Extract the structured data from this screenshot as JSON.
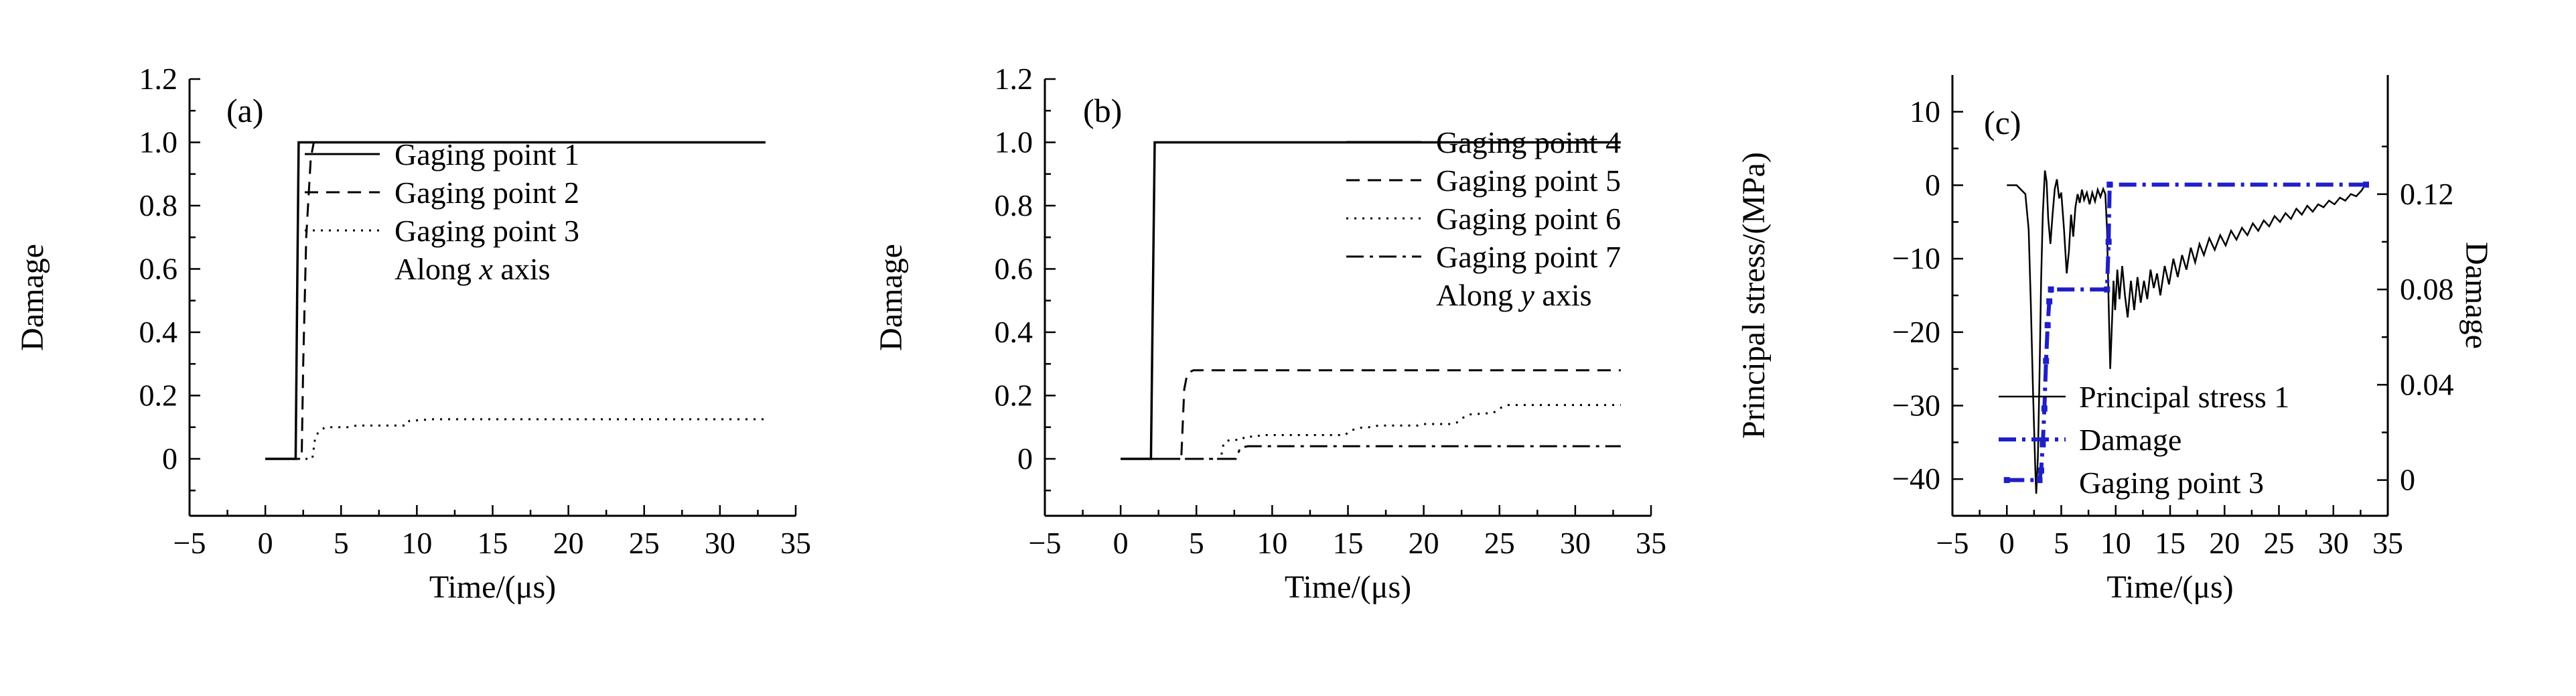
{
  "colors": {
    "black": "#000000",
    "blue": "#1f1fc8",
    "background": "#ffffff"
  },
  "chart_data": [
    {
      "type": "line",
      "panel_label": "(a)",
      "xlabel": "Time/(μs)",
      "ylabel": "Damage",
      "xlim": [
        -5,
        35
      ],
      "ylim": [
        -0.18,
        1.2
      ],
      "xtick_values": [
        -5,
        0,
        5,
        10,
        15,
        20,
        25,
        30,
        35
      ],
      "xtick_labels": [
        "−5",
        "0",
        "5",
        "10",
        "15",
        "20",
        "25",
        "30",
        "35"
      ],
      "ytick_values": [
        0,
        0.2,
        0.4,
        0.6,
        0.8,
        1.0,
        1.2
      ],
      "ytick_labels": [
        "0",
        "0.2",
        "0.4",
        "0.6",
        "0.8",
        "1.0",
        "1.2"
      ],
      "series": [
        {
          "name": "Gaging point 3",
          "style": "dotted",
          "color": "#000000",
          "width": 3,
          "points": [
            [
              0,
              0
            ],
            [
              3.1,
              0
            ],
            [
              3.3,
              0.07
            ],
            [
              3.6,
              0.09
            ],
            [
              4.0,
              0.1
            ],
            [
              5.5,
              0.1
            ],
            [
              6.0,
              0.105
            ],
            [
              9.3,
              0.105
            ],
            [
              9.5,
              0.12
            ],
            [
              11,
              0.125
            ],
            [
              33,
              0.125
            ]
          ]
        },
        {
          "name": "Gaging point 2",
          "style": "dashed",
          "color": "#000000",
          "width": 3,
          "points": [
            [
              0,
              0
            ],
            [
              2.4,
              0
            ],
            [
              2.5,
              0.3
            ],
            [
              2.7,
              0.7
            ],
            [
              3.0,
              0.95
            ],
            [
              3.2,
              1.0
            ],
            [
              33,
              1.0
            ]
          ]
        },
        {
          "name": "Gaging point 1",
          "style": "solid",
          "color": "#000000",
          "width": 3.5,
          "points": [
            [
              0,
              0
            ],
            [
              2.0,
              0
            ],
            [
              2.1,
              0.5
            ],
            [
              2.2,
              1.0
            ],
            [
              33,
              1.0
            ]
          ]
        }
      ],
      "legend": {
        "entries": [
          {
            "label": "Gaging point 1",
            "style": "solid",
            "color": "#000000",
            "width": 3
          },
          {
            "label": "Gaging point 2",
            "style": "dashed",
            "color": "#000000",
            "width": 3
          },
          {
            "label": "Gaging point 3",
            "style": "dotted",
            "color": "#000000",
            "width": 3
          },
          {
            "label": "Along x axis",
            "label_parts": [
              {
                "t": "Along "
              },
              {
                "t": "x",
                "italic": true
              },
              {
                "t": " axis"
              }
            ]
          }
        ]
      }
    },
    {
      "type": "line",
      "panel_label": "(b)",
      "xlabel": "Time/(μs)",
      "ylabel": "Damage",
      "xlim": [
        -5,
        35
      ],
      "ylim": [
        -0.18,
        1.2
      ],
      "xtick_values": [
        -5,
        0,
        5,
        10,
        15,
        20,
        25,
        30,
        35
      ],
      "xtick_labels": [
        "−5",
        "0",
        "5",
        "10",
        "15",
        "20",
        "25",
        "30",
        "35"
      ],
      "ytick_values": [
        0,
        0.2,
        0.4,
        0.6,
        0.8,
        1.0,
        1.2
      ],
      "ytick_labels": [
        "0",
        "0.2",
        "0.4",
        "0.6",
        "0.8",
        "1.0",
        "1.2"
      ],
      "series": [
        {
          "name": "Gaging point 7",
          "style": "dashdot",
          "color": "#000000",
          "width": 3,
          "points": [
            [
              0,
              0
            ],
            [
              7.6,
              0
            ],
            [
              7.9,
              0.035
            ],
            [
              8.4,
              0.04
            ],
            [
              33,
              0.04
            ]
          ]
        },
        {
          "name": "Gaging point 6",
          "style": "dotted",
          "color": "#000000",
          "width": 3,
          "points": [
            [
              0,
              0
            ],
            [
              6.6,
              0
            ],
            [
              6.8,
              0.05
            ],
            [
              7.2,
              0.06
            ],
            [
              8.0,
              0.06
            ],
            [
              8.2,
              0.07
            ],
            [
              9.0,
              0.07
            ],
            [
              9.2,
              0.075
            ],
            [
              14.8,
              0.075
            ],
            [
              15.2,
              0.09
            ],
            [
              16.0,
              0.1
            ],
            [
              16.4,
              0.1
            ],
            [
              17.0,
              0.105
            ],
            [
              19.6,
              0.105
            ],
            [
              20.0,
              0.11
            ],
            [
              21.8,
              0.11
            ],
            [
              22.2,
              0.115
            ],
            [
              22.6,
              0.13
            ],
            [
              23.0,
              0.14
            ],
            [
              24.6,
              0.145
            ],
            [
              25.0,
              0.16
            ],
            [
              25.6,
              0.17
            ],
            [
              33,
              0.17
            ]
          ]
        },
        {
          "name": "Gaging point 5",
          "style": "dashed",
          "color": "#000000",
          "width": 3,
          "points": [
            [
              0,
              0
            ],
            [
              4.0,
              0
            ],
            [
              4.2,
              0.22
            ],
            [
              4.4,
              0.27
            ],
            [
              4.8,
              0.28
            ],
            [
              33,
              0.28
            ]
          ]
        },
        {
          "name": "Gaging point 4",
          "style": "solid",
          "color": "#000000",
          "width": 3.5,
          "points": [
            [
              0,
              0
            ],
            [
              2.0,
              0
            ],
            [
              2.1,
              0.4
            ],
            [
              2.25,
              1.0
            ],
            [
              33,
              1.0
            ]
          ]
        }
      ],
      "legend": {
        "entries": [
          {
            "label": "Gaging point 4",
            "style": "solid",
            "color": "#000000",
            "width": 3
          },
          {
            "label": "Gaging point 5",
            "style": "dashed",
            "color": "#000000",
            "width": 3
          },
          {
            "label": "Gaging point 6",
            "style": "dotted",
            "color": "#000000",
            "width": 3
          },
          {
            "label": "Gaging point 7",
            "style": "dashdot",
            "color": "#000000",
            "width": 3
          },
          {
            "label": "Along y axis",
            "label_parts": [
              {
                "t": "Along "
              },
              {
                "t": "y",
                "italic": true
              },
              {
                "t": " axis"
              }
            ]
          }
        ]
      }
    },
    {
      "type": "line",
      "panel_label": "(c)",
      "xlabel": "Time/(μs)",
      "ylabel": "Principal stress/(MPa)",
      "xlim": [
        -5,
        35
      ],
      "ylim": [
        -45,
        15
      ],
      "xtick_values": [
        -5,
        0,
        5,
        10,
        15,
        20,
        25,
        30,
        35
      ],
      "xtick_labels": [
        "−5",
        "0",
        "5",
        "10",
        "15",
        "20",
        "25",
        "30",
        "35"
      ],
      "ytick_values": [
        10,
        0,
        -10,
        -20,
        -30,
        -40
      ],
      "ytick_labels": [
        "10",
        "0",
        "−10",
        "−20",
        "−30",
        "−40"
      ],
      "y2": {
        "label": "Damage",
        "lim": [
          -0.015,
          0.17
        ],
        "tick_values": [
          0,
          0.04,
          0.08,
          0.12
        ],
        "tick_labels": [
          "0",
          "0.04",
          "0.08",
          "0.12"
        ]
      },
      "series": [
        {
          "name": "Principal stress 1",
          "style": "solid",
          "color": "#000000",
          "width": 2.5,
          "axis": "y",
          "points": [
            [
              0,
              0
            ],
            [
              0.9,
              0
            ],
            [
              1.3,
              -0.6
            ],
            [
              1.7,
              -1.2
            ],
            [
              2.0,
              -6
            ],
            [
              2.2,
              -16
            ],
            [
              2.4,
              -28
            ],
            [
              2.6,
              -38
            ],
            [
              2.7,
              -42
            ],
            [
              2.85,
              -37
            ],
            [
              3.0,
              -26
            ],
            [
              3.15,
              -13
            ],
            [
              3.3,
              -4
            ],
            [
              3.5,
              2
            ],
            [
              3.65,
              0.5
            ],
            [
              3.8,
              -4.5
            ],
            [
              4.0,
              -8
            ],
            [
              4.2,
              -4
            ],
            [
              4.4,
              -0.5
            ],
            [
              4.6,
              0.8
            ],
            [
              4.8,
              -1.8
            ],
            [
              5.0,
              -1
            ],
            [
              5.25,
              -6
            ],
            [
              5.5,
              -12
            ],
            [
              5.7,
              -9
            ],
            [
              5.9,
              -4
            ],
            [
              6.1,
              -7
            ],
            [
              6.3,
              -3
            ],
            [
              6.5,
              -1.2
            ],
            [
              6.7,
              -2.4
            ],
            [
              6.9,
              -0.6
            ],
            [
              7.1,
              -2
            ],
            [
              7.35,
              -1
            ],
            [
              7.6,
              -2.6
            ],
            [
              7.85,
              -1
            ],
            [
              8.1,
              -2.2
            ],
            [
              8.35,
              -0.6
            ],
            [
              8.6,
              -1.6
            ],
            [
              8.85,
              -0.5
            ],
            [
              9.05,
              -1.2
            ],
            [
              9.2,
              -6
            ],
            [
              9.35,
              -16
            ],
            [
              9.5,
              -25
            ],
            [
              9.65,
              -19
            ],
            [
              9.8,
              -13
            ],
            [
              9.95,
              -17
            ],
            [
              10.15,
              -11.5
            ],
            [
              10.35,
              -15.5
            ],
            [
              10.6,
              -11
            ],
            [
              10.85,
              -15
            ],
            [
              11.1,
              -18
            ],
            [
              11.4,
              -13
            ],
            [
              11.7,
              -17
            ],
            [
              12.0,
              -12.5
            ],
            [
              12.3,
              -16
            ],
            [
              12.6,
              -13
            ],
            [
              12.9,
              -15.5
            ],
            [
              13.2,
              -11.5
            ],
            [
              13.5,
              -14
            ],
            [
              13.8,
              -12
            ],
            [
              14.1,
              -15
            ],
            [
              14.5,
              -11
            ],
            [
              14.9,
              -13.5
            ],
            [
              15.3,
              -10
            ],
            [
              15.7,
              -12.5
            ],
            [
              16.1,
              -9.5
            ],
            [
              16.5,
              -11.5
            ],
            [
              16.9,
              -8.5
            ],
            [
              17.3,
              -10.5
            ],
            [
              17.7,
              -8
            ],
            [
              18.1,
              -9.5
            ],
            [
              18.6,
              -7.2
            ],
            [
              19.1,
              -8.8
            ],
            [
              19.6,
              -6.8
            ],
            [
              20.1,
              -8.2
            ],
            [
              20.6,
              -6.2
            ],
            [
              21.1,
              -7.4
            ],
            [
              21.6,
              -5.8
            ],
            [
              22.1,
              -6.8
            ],
            [
              22.6,
              -5.2
            ],
            [
              23.1,
              -6.2
            ],
            [
              23.6,
              -4.8
            ],
            [
              24.1,
              -5.6
            ],
            [
              24.6,
              -4.2
            ],
            [
              25.1,
              -5
            ],
            [
              25.6,
              -3.8
            ],
            [
              26.1,
              -4.6
            ],
            [
              26.6,
              -3.2
            ],
            [
              27.1,
              -4
            ],
            [
              27.6,
              -2.8
            ],
            [
              28.1,
              -3.6
            ],
            [
              28.6,
              -2.6
            ],
            [
              29.1,
              -3
            ],
            [
              29.6,
              -2.1
            ],
            [
              30.1,
              -2.6
            ],
            [
              30.6,
              -1.7
            ],
            [
              31.1,
              -2.1
            ],
            [
              31.6,
              -1.2
            ],
            [
              32.1,
              -1.5
            ],
            [
              32.6,
              -0.7
            ],
            [
              33,
              0.3
            ]
          ]
        },
        {
          "name": "Damage",
          "style": "dashdot",
          "color": "#1f1fc8",
          "width": 6,
          "axis": "y2",
          "markers": true,
          "points": [
            [
              0,
              0
            ],
            [
              3.0,
              0
            ],
            [
              3.15,
              0.004
            ],
            [
              3.3,
              0.015
            ],
            [
              3.45,
              0.03
            ],
            [
              3.6,
              0.05
            ],
            [
              3.75,
              0.065
            ],
            [
              3.9,
              0.075
            ],
            [
              4.05,
              0.08
            ],
            [
              9.2,
              0.08
            ],
            [
              9.35,
              0.1
            ],
            [
              9.45,
              0.124
            ],
            [
              33,
              0.124
            ]
          ]
        }
      ],
      "legend": {
        "entries": [
          {
            "label": "Principal stress 1",
            "style": "solid",
            "color": "#000000",
            "width": 2.5
          },
          {
            "label": "Damage",
            "style": "dashdot",
            "color": "#1f1fc8",
            "width": 6
          },
          {
            "label": "Gaging point 3"
          }
        ]
      }
    }
  ]
}
